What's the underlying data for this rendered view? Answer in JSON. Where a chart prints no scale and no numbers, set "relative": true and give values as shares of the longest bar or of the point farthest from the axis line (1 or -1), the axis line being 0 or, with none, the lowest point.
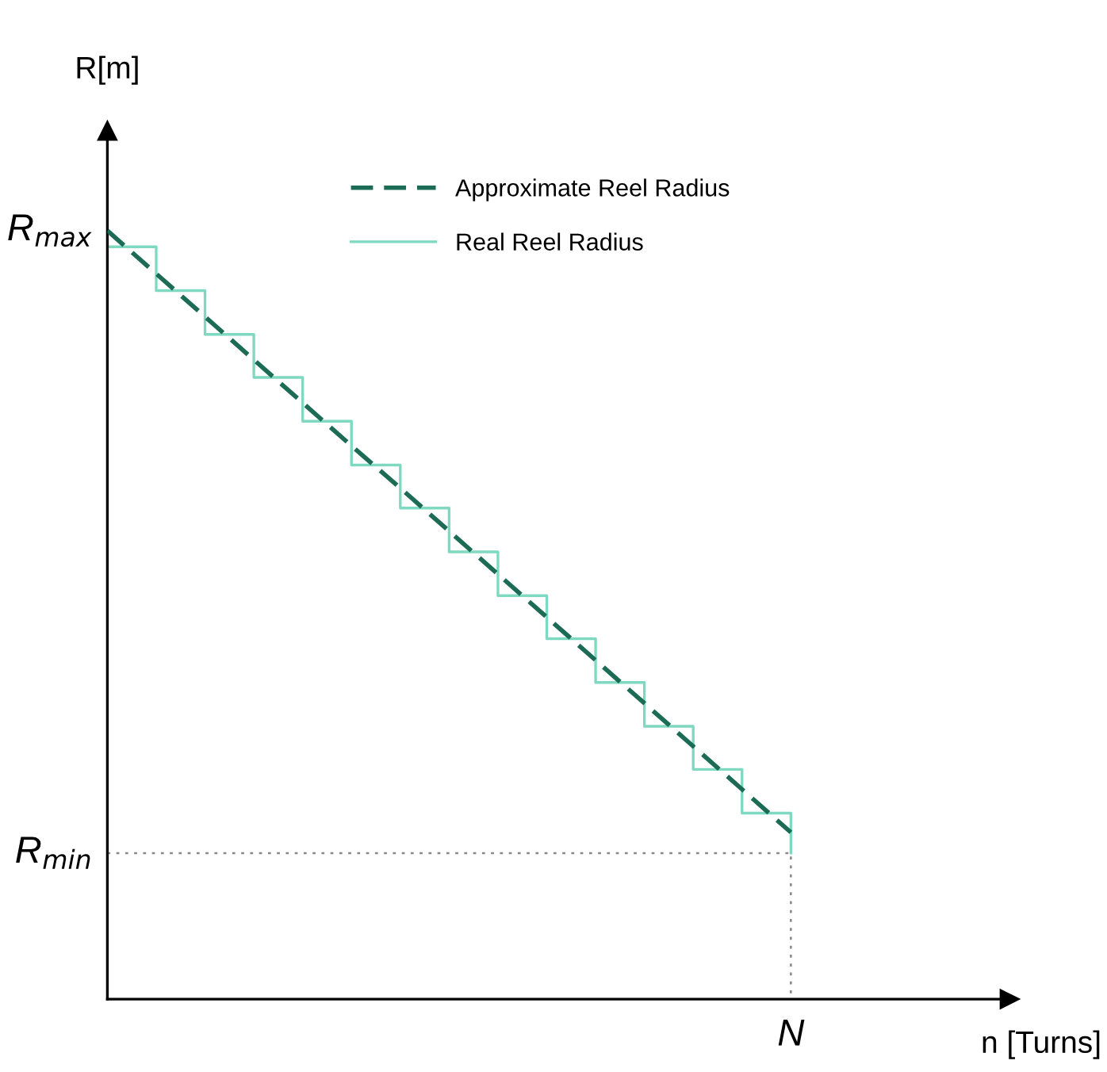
{
  "chart_data": {
    "type": "line",
    "relative": true,
    "ylabel": "R[m]",
    "categories": [
      null,
      null,
      null,
      null,
      null,
      null,
      null,
      null,
      null,
      null,
      null,
      null,
      null,
      null,
      null
    ],
    "series": [
      {
        "name": "Approximate Reel Radius",
        "line_style": "dashed",
        "color": "#1b6b55",
        "values": [
          1.0,
          0.944,
          0.888,
          0.832,
          0.776,
          0.72,
          0.665,
          0.609,
          0.553,
          0.497,
          0.441,
          0.385,
          0.329,
          0.273,
          0.217
        ]
      },
      {
        "name": "Real Reel Radius",
        "type": "step",
        "line_style": "solid",
        "color": "#7fd8c0",
        "values": [
          0.979,
          0.922,
          0.865,
          0.809,
          0.752,
          0.695,
          0.639,
          0.582,
          0.525,
          0.469,
          0.412,
          0.355,
          0.299,
          0.242,
          0.19
        ]
      }
    ],
    "ref_lines": [
      {
        "axis": "y",
        "value": 0.19,
        "label": "R$_{min}$",
        "color": "#888888",
        "line_style": "dotted"
      }
    ],
    "annotations": [
      "R$_{max}$",
      "N",
      "n [Turns]"
    ],
    "legend": "top"
  }
}
